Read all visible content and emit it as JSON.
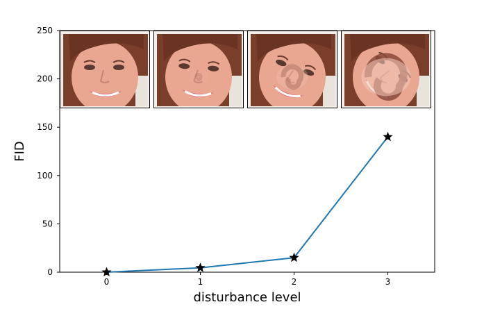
{
  "chart_data": {
    "type": "line",
    "x": [
      0,
      1,
      2,
      3
    ],
    "y": [
      0,
      4.5,
      15,
      140
    ],
    "xlabel": "disturbance level",
    "ylabel": "FID",
    "xlim": [
      -0.5,
      3.5
    ],
    "ylim": [
      0,
      250
    ],
    "xticks": [
      "0",
      "1",
      "2",
      "3"
    ],
    "yticks": [
      "0",
      "50",
      "100",
      "150",
      "200",
      "250"
    ],
    "marker": "star",
    "line_color": "#1f77b4",
    "marker_color": "#000000",
    "grid": false,
    "inset_images": [
      {
        "disturbance_level": 0,
        "swirl": 0
      },
      {
        "disturbance_level": 1,
        "swirl": 0.4
      },
      {
        "disturbance_level": 2,
        "swirl": 1.6
      },
      {
        "disturbance_level": 3,
        "swirl": 3.2
      }
    ]
  }
}
